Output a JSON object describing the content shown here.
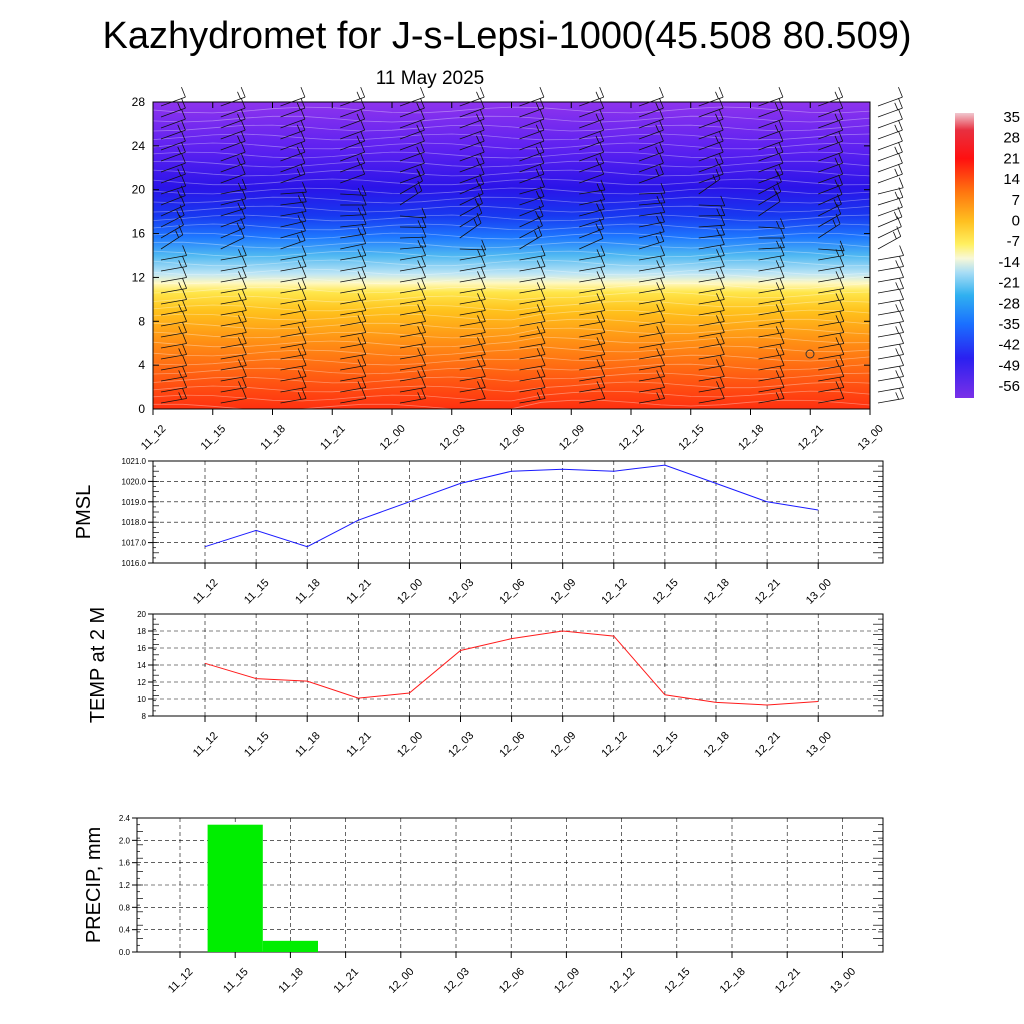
{
  "title": "Kazhydromet for J-s-Lepsi-1000(45.508 80.509)",
  "subtitle": "11 May 2025",
  "time_labels": [
    "11_12",
    "11_15",
    "11_18",
    "11_21",
    "12_00",
    "12_03",
    "12_06",
    "12_09",
    "12_12",
    "12_15",
    "12_18",
    "12_21",
    "13_00"
  ],
  "chart_data": [
    {
      "type": "heatmap",
      "name": "temperature-profile",
      "y_ticks": [
        0,
        4,
        8,
        12,
        16,
        20,
        24,
        28
      ],
      "ylim": [
        0,
        28
      ],
      "colorbar_labels": [
        "35",
        "28",
        "21",
        "14",
        "7",
        "0",
        "-7",
        "-14",
        "-21",
        "-28",
        "-35",
        "-42",
        "-49",
        "-56"
      ],
      "colors": {
        "top": "#8a2be2",
        "upper": "#3b1cff",
        "mid_blue": "#1e6cff",
        "light_blue": "#9fd8f5",
        "pale": "#fff7b0",
        "yellow": "#ffd21f",
        "orange": "#ff8a10",
        "bottom": "#ff3a10"
      }
    },
    {
      "type": "line",
      "ylabel": "PMSL",
      "ylim": [
        1016.0,
        1021.0
      ],
      "y_ticks": [
        "1016.0",
        "1017.0",
        "1018.0",
        "1019.0",
        "1020.0",
        "1021.0"
      ],
      "series": [
        {
          "color": "#1a1aff",
          "values": [
            1016.8,
            1017.6,
            1016.8,
            1018.1,
            1019.0,
            1019.9,
            1020.5,
            1020.6,
            1020.5,
            1020.8,
            1019.9,
            1019.0,
            1018.6
          ]
        }
      ]
    },
    {
      "type": "line",
      "ylabel": "TEMP at 2 M",
      "ylim": [
        8,
        20
      ],
      "y_ticks": [
        "8",
        "10",
        "12",
        "14",
        "16",
        "18",
        "20"
      ],
      "series": [
        {
          "color": "#ff1a1a",
          "values": [
            14.2,
            12.4,
            12.1,
            10.1,
            10.7,
            15.7,
            17.1,
            18.0,
            17.4,
            10.5,
            9.6,
            9.3,
            9.7
          ]
        }
      ]
    },
    {
      "type": "bar",
      "ylabel": "PRECIP, mm",
      "ylim": [
        0,
        2.4
      ],
      "y_ticks": [
        "0.0",
        "0.4",
        "0.8",
        "1.2",
        "1.6",
        "2.0",
        "2.4"
      ],
      "color": "#00ee00",
      "values": [
        0,
        2.28,
        0.2,
        0,
        0,
        0,
        0,
        0,
        0,
        0,
        0,
        0,
        0
      ]
    }
  ]
}
